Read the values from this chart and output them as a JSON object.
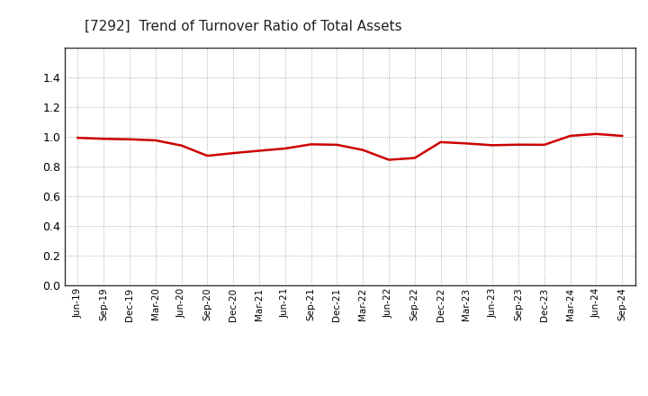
{
  "title": "[7292]  Trend of Turnover Ratio of Total Assets",
  "title_fontsize": 11,
  "title_fontweight": "normal",
  "line_color": "#cc0000",
  "line_width": 1.8,
  "background_color": "#ffffff",
  "plot_bg_color": "#ffffff",
  "grid_color": "#999999",
  "ylim": [
    0.0,
    1.6
  ],
  "yticks": [
    0.0,
    0.2,
    0.4,
    0.6,
    0.8,
    1.0,
    1.2,
    1.4
  ],
  "x_labels": [
    "Jun-19",
    "Sep-19",
    "Dec-19",
    "Mar-20",
    "Jun-20",
    "Sep-20",
    "Dec-20",
    "Mar-21",
    "Jun-21",
    "Sep-21",
    "Dec-21",
    "Mar-22",
    "Jun-22",
    "Sep-22",
    "Dec-22",
    "Mar-23",
    "Jun-23",
    "Sep-23",
    "Dec-23",
    "Mar-24",
    "Jun-24",
    "Sep-24"
  ],
  "values": [
    0.992,
    0.985,
    0.982,
    0.975,
    0.94,
    0.871,
    0.889,
    0.905,
    0.92,
    0.948,
    0.945,
    0.91,
    0.844,
    0.856,
    0.963,
    0.954,
    0.942,
    0.946,
    0.945,
    1.005,
    1.018,
    1.005
  ]
}
